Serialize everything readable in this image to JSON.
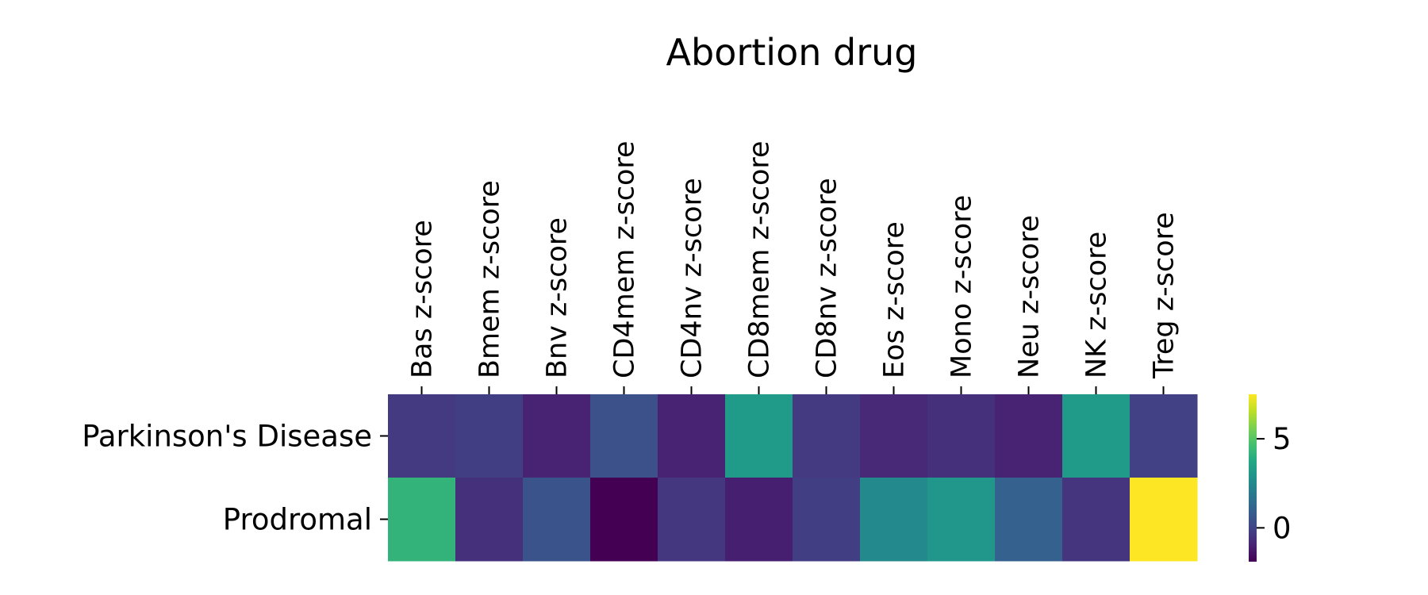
{
  "chart_data": {
    "type": "heatmap",
    "title": "Abortion drug",
    "columns": [
      "Bas z-score",
      "Bmem z-score",
      "Bnv z-score",
      "CD4mem z-score",
      "CD4nv z-score",
      "CD8mem z-score",
      "CD8nv z-score",
      "Eos z-score",
      "Mono z-score",
      "Neu z-score",
      "NK z-score",
      "Treg z-score"
    ],
    "rows": [
      "Parkinson's Disease",
      "Prodromal"
    ],
    "values": [
      [
        -0.3,
        -0.2,
        -1.0,
        0.4,
        -1.0,
        3.2,
        -0.3,
        -0.8,
        -0.6,
        -1.0,
        3.2,
        -0.1
      ],
      [
        4.2,
        -0.6,
        0.5,
        -1.9,
        -0.4,
        -1.1,
        -0.2,
        2.5,
        3.0,
        1.0,
        -0.5,
        7.5
      ]
    ],
    "colorbar": {
      "min": -1.9,
      "max": 7.5,
      "ticks": [
        0,
        5
      ],
      "colormap": "viridis"
    }
  }
}
